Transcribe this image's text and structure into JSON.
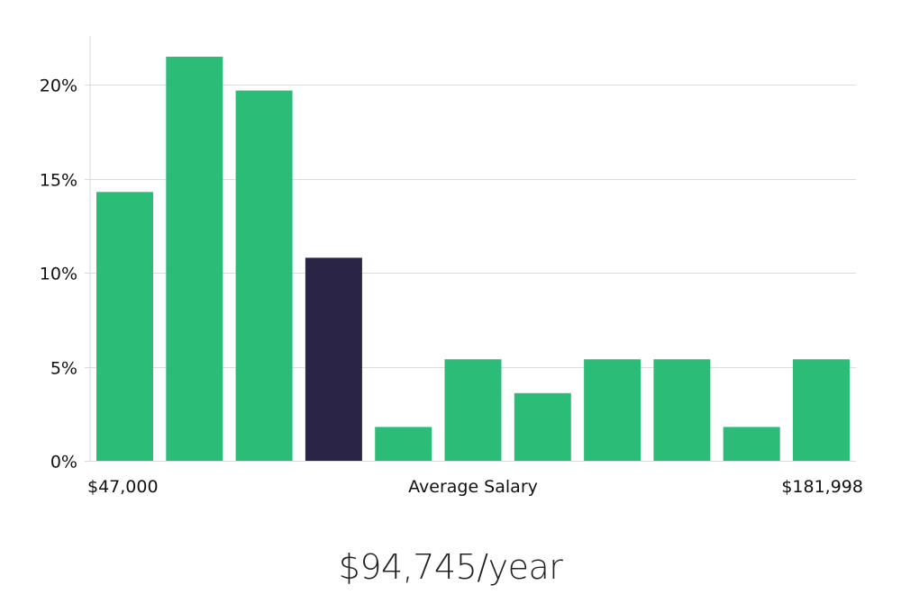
{
  "chart_data": {
    "type": "bar",
    "title": "",
    "xlabel": "",
    "ylabel": "",
    "values": [
      14.3,
      21.5,
      19.7,
      10.8,
      1.8,
      5.4,
      3.6,
      5.4,
      5.4,
      1.8,
      5.4
    ],
    "highlight_index": 3,
    "ylim": [
      0,
      22.6
    ],
    "y_ticks": [
      0,
      5,
      10,
      15,
      20
    ],
    "y_tick_labels": [
      "0%",
      "5%",
      "10%",
      "15%",
      "20%"
    ],
    "grid": true,
    "x_labels": {
      "min": "$47,000",
      "middle": "Average Salary",
      "max": "$181,998"
    }
  },
  "colors": {
    "bar": "#2bbd77",
    "highlight": "#2a2546",
    "grid": "#dcdcdc"
  },
  "salary_caption": "$94,745/year"
}
